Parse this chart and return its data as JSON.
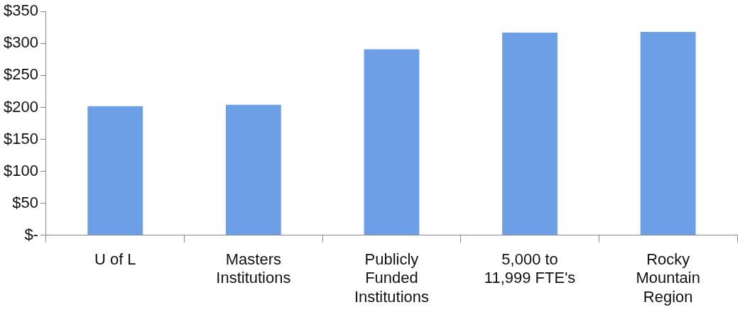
{
  "chart_data": {
    "type": "bar",
    "categories": [
      "U of L",
      "Masters Institutions",
      "Publicly Funded Institutions",
      "5,000 to 11,999 FTE's",
      "Rocky Mountain Region"
    ],
    "values": [
      202,
      204,
      291,
      317,
      318
    ],
    "color": "#6d9fe6",
    "ylim": [
      0,
      350
    ],
    "yticks": [
      {
        "value": 0,
        "label": "$-"
      },
      {
        "value": 50,
        "label": "$50"
      },
      {
        "value": 100,
        "label": "$100"
      },
      {
        "value": 150,
        "label": "$150"
      },
      {
        "value": 200,
        "label": "$200"
      },
      {
        "value": 250,
        "label": "$250"
      },
      {
        "value": 300,
        "label": "$300"
      },
      {
        "value": 350,
        "label": "$350"
      }
    ]
  }
}
